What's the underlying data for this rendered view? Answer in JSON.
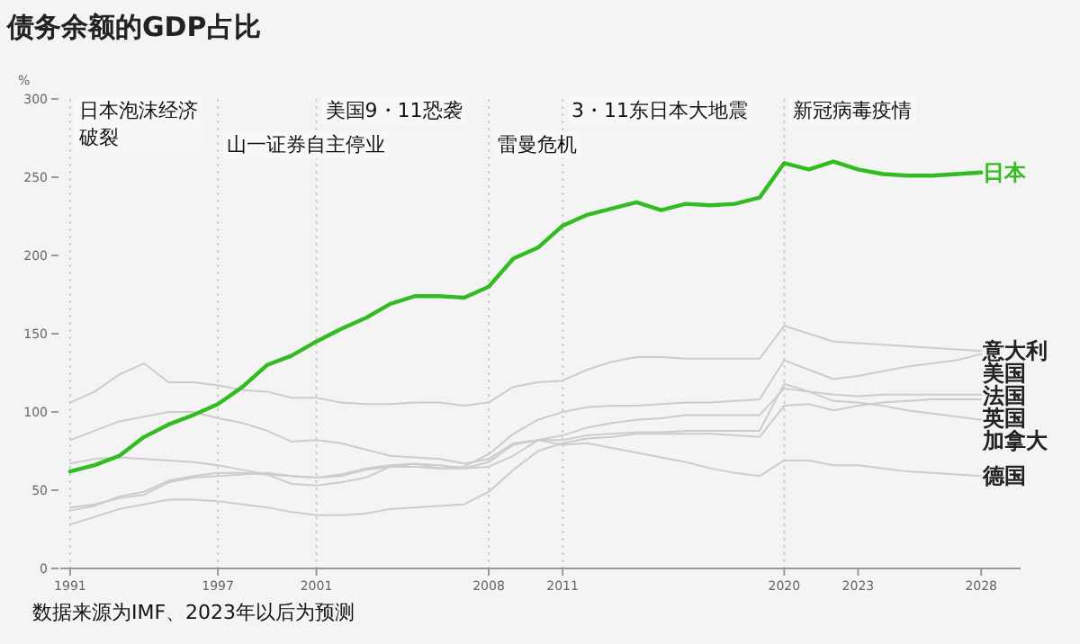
{
  "chart_data": {
    "type": "line",
    "title": "债务余额的GDP占比",
    "ylabel": "%",
    "x": [
      1991,
      1992,
      1993,
      1994,
      1995,
      1996,
      1997,
      1998,
      1999,
      2000,
      2001,
      2002,
      2003,
      2004,
      2005,
      2006,
      2007,
      2008,
      2009,
      2010,
      2011,
      2012,
      2013,
      2014,
      2015,
      2016,
      2017,
      2018,
      2019,
      2020,
      2021,
      2022,
      2023,
      2024,
      2025,
      2026,
      2027,
      2028
    ],
    "series": [
      {
        "name": "意大利",
        "color": "#cccccc",
        "values": [
          106,
          113,
          124,
          131,
          119,
          119,
          117,
          114,
          113,
          109,
          109,
          106,
          105,
          105,
          106,
          106,
          104,
          106,
          116,
          119,
          120,
          127,
          132,
          135,
          135,
          134,
          134,
          134,
          134,
          155,
          150,
          145,
          144,
          143,
          142,
          141,
          140,
          139
        ]
      },
      {
        "name": "美国",
        "color": "#cccccc",
        "values": [
          67,
          70,
          71,
          70,
          69,
          68,
          66,
          63,
          60,
          54,
          53,
          55,
          58,
          65,
          65,
          64,
          65,
          73,
          86,
          95,
          100,
          103,
          104,
          104,
          105,
          106,
          106,
          107,
          108,
          133,
          127,
          121,
          123,
          126,
          129,
          131,
          133,
          137
        ]
      },
      {
        "name": "法国",
        "color": "#cccccc",
        "values": [
          37,
          40,
          46,
          49,
          56,
          59,
          61,
          61,
          60,
          59,
          58,
          60,
          64,
          66,
          67,
          64,
          64,
          68,
          79,
          82,
          85,
          90,
          93,
          95,
          96,
          98,
          98,
          98,
          98,
          115,
          113,
          111,
          110,
          111,
          111,
          111,
          111,
          111
        ]
      },
      {
        "name": "英国",
        "color": "#cccccc",
        "values": [
          28,
          33,
          38,
          41,
          44,
          44,
          43,
          41,
          39,
          36,
          34,
          34,
          35,
          38,
          39,
          40,
          41,
          49,
          63,
          75,
          80,
          83,
          84,
          86,
          86,
          86,
          86,
          85,
          84,
          104,
          105,
          101,
          104,
          106,
          107,
          108,
          108,
          108
        ]
      },
      {
        "name": "加拿大",
        "color": "#cccccc",
        "values": [
          82,
          88,
          94,
          97,
          100,
          100,
          96,
          93,
          88,
          81,
          82,
          80,
          76,
          72,
          71,
          70,
          67,
          70,
          80,
          82,
          82,
          85,
          86,
          87,
          87,
          88,
          88,
          88,
          88,
          118,
          113,
          107,
          106,
          104,
          101,
          99,
          97,
          95
        ]
      },
      {
        "name": "德国",
        "color": "#cccccc",
        "values": [
          39,
          41,
          45,
          47,
          55,
          58,
          59,
          60,
          61,
          59,
          58,
          59,
          63,
          65,
          67,
          66,
          64,
          65,
          72,
          82,
          79,
          80,
          77,
          74,
          71,
          68,
          64,
          61,
          59,
          69,
          69,
          66,
          66,
          64,
          62,
          61,
          60,
          59
        ]
      },
      {
        "name": "日本",
        "color": "#33bb22",
        "values": [
          62,
          66,
          72,
          84,
          92,
          98,
          105,
          116,
          130,
          136,
          145,
          153,
          160,
          169,
          174,
          174,
          173,
          180,
          198,
          205,
          219,
          226,
          230,
          234,
          229,
          233,
          232,
          233,
          237,
          259,
          255,
          260,
          255,
          252,
          251,
          251,
          252,
          253
        ]
      }
    ],
    "xlim": [
      1990.6,
      2029.6
    ],
    "ylim": [
      0,
      300
    ],
    "xticks": [
      1991,
      1997,
      2001,
      2008,
      2011,
      2020,
      2023,
      2028
    ],
    "yticks": [
      0,
      50,
      100,
      150,
      200,
      250,
      300
    ],
    "ref_lines": [
      {
        "axis": "x",
        "value": 1991,
        "label": "日本泡沫经济破裂",
        "line_style": "dotted"
      },
      {
        "axis": "x",
        "value": 1997,
        "label": "山一证券自主停业",
        "line_style": "dotted"
      },
      {
        "axis": "x",
        "value": 2001,
        "label": "美国9・11恐袭",
        "line_style": "dotted"
      },
      {
        "axis": "x",
        "value": 2008,
        "label": "雷曼危机",
        "line_style": "dotted"
      },
      {
        "axis": "x",
        "value": 2011,
        "label": "3・11东日本大地震",
        "line_style": "dotted"
      },
      {
        "axis": "x",
        "value": 2020,
        "label": "新冠病毒疫情",
        "line_style": "dotted"
      }
    ],
    "annotations": [
      "数据来源为IMF、2023年以后为预测"
    ],
    "grid": false,
    "marker": "none",
    "line_style": "solid"
  }
}
